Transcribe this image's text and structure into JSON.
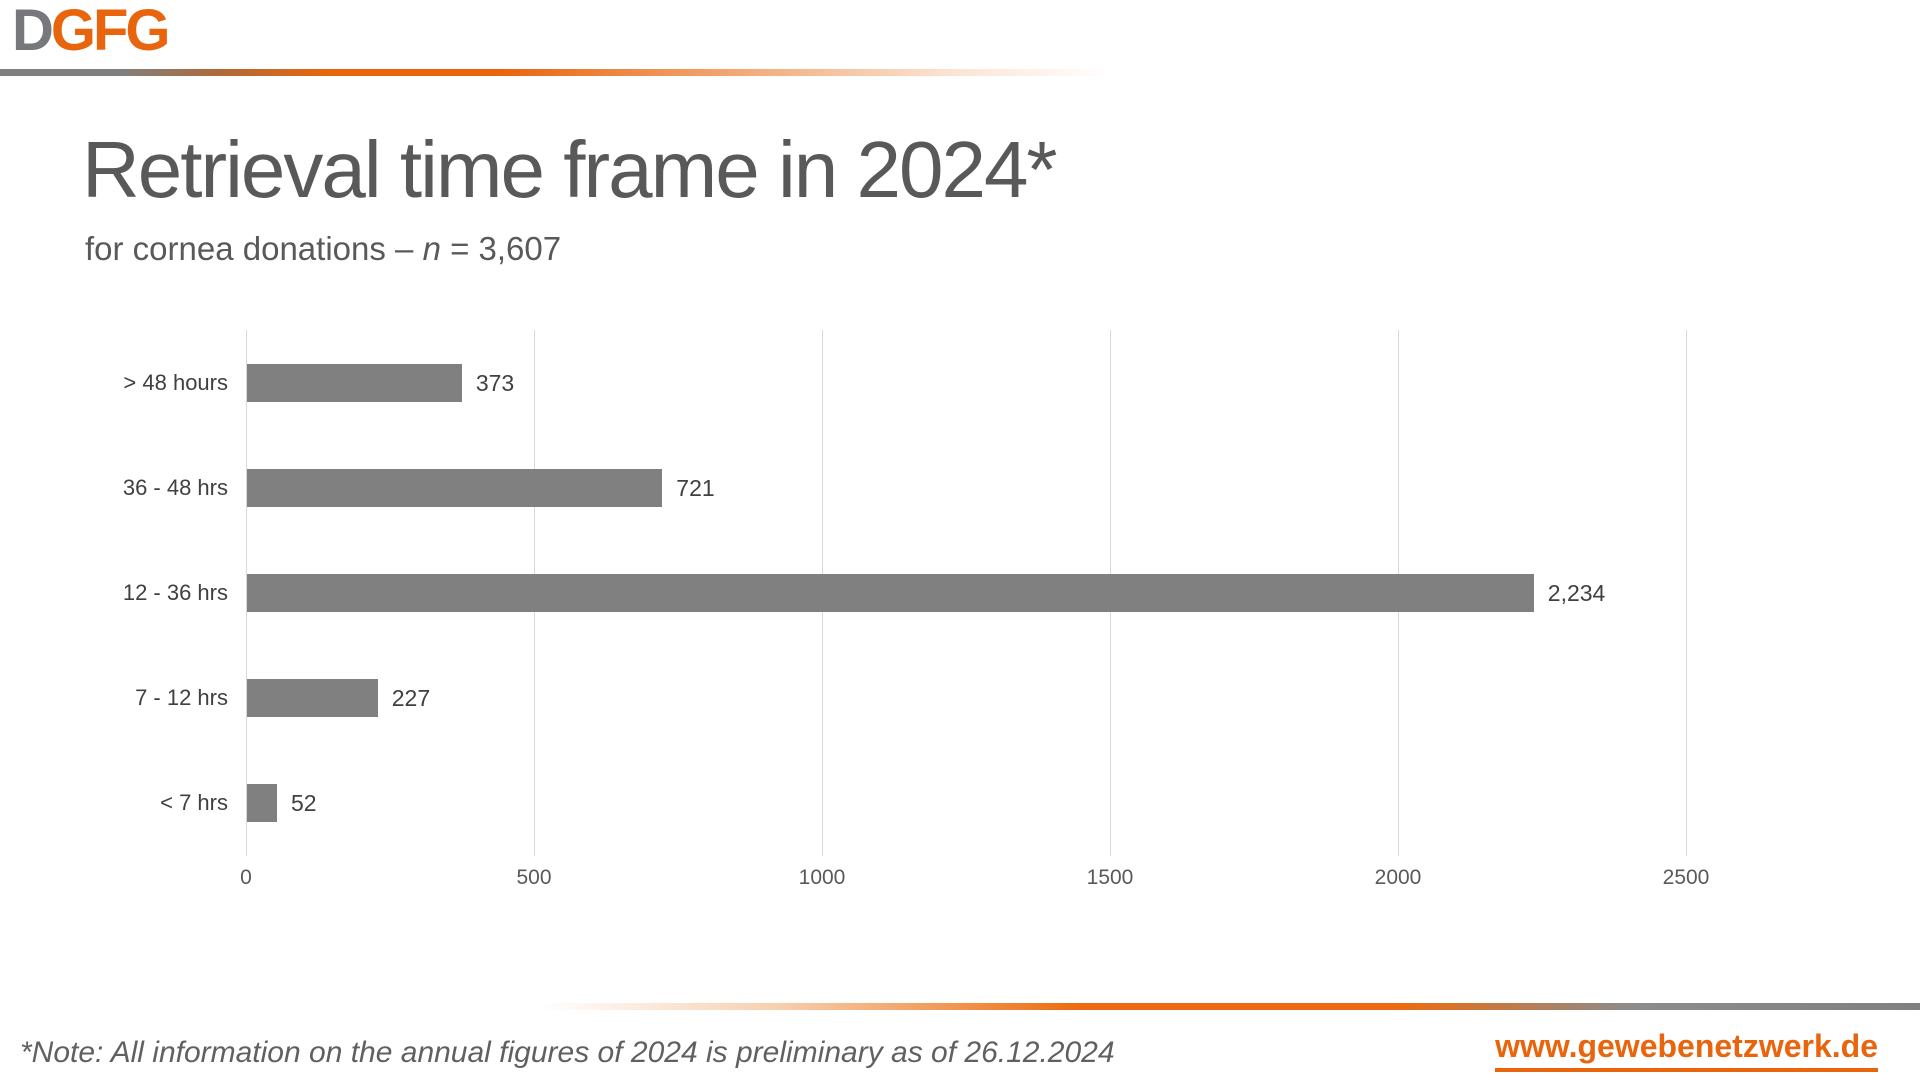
{
  "logo": {
    "part1": "D",
    "part2": "GFG"
  },
  "title": "Retrieval time frame in 2024*",
  "subtitle": {
    "prefix": "for cornea donations – ",
    "n": "n",
    "suffix": " = 3,607"
  },
  "chart_data": {
    "type": "bar",
    "orientation": "horizontal",
    "title": "Retrieval time frame in 2024*",
    "subtitle": "for cornea donations – n = 3,607",
    "categories": [
      "> 48 hours",
      "36 - 48 hrs",
      "12 - 36 hrs",
      "7 - 12 hrs",
      "< 7 hrs"
    ],
    "values": [
      373,
      721,
      2234,
      227,
      52
    ],
    "value_labels": [
      "373",
      "721",
      "2,234",
      "227",
      "52"
    ],
    "x_ticks": [
      0,
      500,
      1000,
      1500,
      2000,
      2500
    ],
    "xlim": [
      0,
      2600
    ],
    "grid": true,
    "legend": "none",
    "bar_color": "#808080",
    "gridline_color": "#d9d9d9"
  },
  "footer": {
    "note": "*Note: All information on the annual figures of 2024 is preliminary as of 26.12.2024",
    "url": "www.gewebenetzwerk.de"
  },
  "colors": {
    "orange": "#e8650d",
    "logo_gray": "#77787b",
    "heading_gray": "#595959",
    "bar_gray": "#808080",
    "text_dark": "#404040"
  }
}
